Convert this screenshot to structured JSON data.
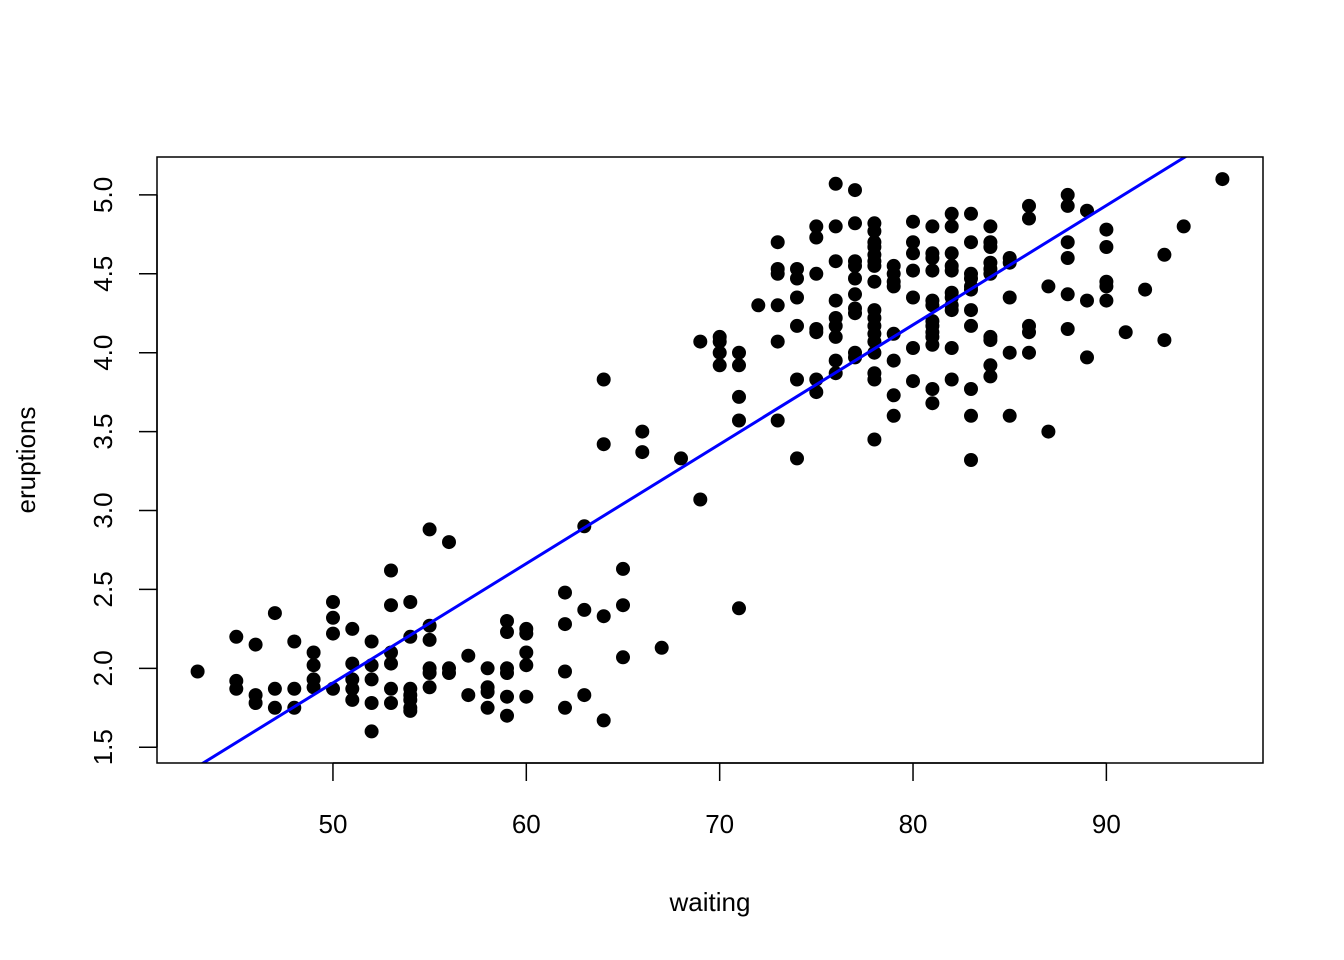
{
  "chart_data": {
    "type": "scatter",
    "title": "",
    "xlabel": "waiting",
    "ylabel": "eruptions",
    "xlim": [
      40.9,
      98.1
    ],
    "ylim": [
      1.4,
      5.24
    ],
    "xticks": [
      50,
      60,
      70,
      80,
      90
    ],
    "yticks": [
      1.5,
      2.0,
      2.5,
      3.0,
      3.5,
      4.0,
      4.5,
      5.0
    ],
    "xtick_labels": [
      "50",
      "60",
      "70",
      "80",
      "90"
    ],
    "ytick_labels": [
      "1.5",
      "2.0",
      "2.5",
      "3.0",
      "3.5",
      "4.0",
      "4.5",
      "5.0"
    ],
    "grid": false,
    "point_color": "#000000",
    "fit_line": {
      "intercept": -1.874,
      "slope": 0.07563,
      "color": "#0000ff"
    },
    "points": [
      [
        43,
        1.98
      ],
      [
        45,
        2.2
      ],
      [
        45,
        1.92
      ],
      [
        45,
        1.87
      ],
      [
        46,
        2.15
      ],
      [
        46,
        1.83
      ],
      [
        46,
        1.78
      ],
      [
        47,
        2.35
      ],
      [
        47,
        1.87
      ],
      [
        47,
        1.75
      ],
      [
        48,
        2.17
      ],
      [
        48,
        1.87
      ],
      [
        48,
        1.75
      ],
      [
        49,
        2.1
      ],
      [
        49,
        2.02
      ],
      [
        49,
        1.93
      ],
      [
        49,
        1.88
      ],
      [
        50,
        2.42
      ],
      [
        50,
        2.32
      ],
      [
        50,
        2.22
      ],
      [
        50,
        1.87
      ],
      [
        51,
        2.25
      ],
      [
        51,
        2.03
      ],
      [
        51,
        1.93
      ],
      [
        51,
        1.87
      ],
      [
        51,
        1.8
      ],
      [
        52,
        2.17
      ],
      [
        52,
        2.02
      ],
      [
        52,
        1.93
      ],
      [
        52,
        1.78
      ],
      [
        52,
        1.6
      ],
      [
        53,
        2.62
      ],
      [
        53,
        2.4
      ],
      [
        53,
        2.1
      ],
      [
        53,
        2.03
      ],
      [
        53,
        1.87
      ],
      [
        53,
        1.78
      ],
      [
        54,
        2.42
      ],
      [
        54,
        2.2
      ],
      [
        54,
        1.87
      ],
      [
        54,
        1.83
      ],
      [
        54,
        1.8
      ],
      [
        54,
        1.75
      ],
      [
        54,
        1.73
      ],
      [
        55,
        2.88
      ],
      [
        55,
        2.27
      ],
      [
        55,
        2.18
      ],
      [
        55,
        2.0
      ],
      [
        55,
        1.97
      ],
      [
        55,
        1.88
      ],
      [
        56,
        2.8
      ],
      [
        56,
        2.0
      ],
      [
        56,
        1.97
      ],
      [
        57,
        2.08
      ],
      [
        57,
        1.83
      ],
      [
        58,
        2.0
      ],
      [
        58,
        1.88
      ],
      [
        58,
        1.85
      ],
      [
        58,
        1.75
      ],
      [
        59,
        2.3
      ],
      [
        59,
        2.23
      ],
      [
        59,
        2.0
      ],
      [
        59,
        1.97
      ],
      [
        59,
        1.82
      ],
      [
        59,
        1.7
      ],
      [
        60,
        2.25
      ],
      [
        60,
        2.22
      ],
      [
        60,
        2.1
      ],
      [
        60,
        2.02
      ],
      [
        60,
        1.82
      ],
      [
        62,
        2.48
      ],
      [
        62,
        2.28
      ],
      [
        62,
        1.98
      ],
      [
        62,
        1.75
      ],
      [
        63,
        2.9
      ],
      [
        63,
        2.37
      ],
      [
        63,
        1.83
      ],
      [
        64,
        3.83
      ],
      [
        64,
        3.42
      ],
      [
        64,
        2.33
      ],
      [
        64,
        1.67
      ],
      [
        65,
        2.63
      ],
      [
        65,
        2.4
      ],
      [
        65,
        2.07
      ],
      [
        66,
        3.5
      ],
      [
        66,
        3.37
      ],
      [
        67,
        2.13
      ],
      [
        68,
        3.33
      ],
      [
        69,
        4.07
      ],
      [
        69,
        3.07
      ],
      [
        70,
        4.1
      ],
      [
        70,
        4.07
      ],
      [
        70,
        4.0
      ],
      [
        70,
        3.92
      ],
      [
        71,
        4.0
      ],
      [
        71,
        3.92
      ],
      [
        71,
        3.72
      ],
      [
        71,
        3.57
      ],
      [
        71,
        2.38
      ],
      [
        72,
        4.3
      ],
      [
        73,
        4.7
      ],
      [
        73,
        4.53
      ],
      [
        73,
        4.5
      ],
      [
        73,
        4.3
      ],
      [
        73,
        4.07
      ],
      [
        73,
        3.57
      ],
      [
        74,
        4.53
      ],
      [
        74,
        4.47
      ],
      [
        74,
        4.35
      ],
      [
        74,
        4.17
      ],
      [
        74,
        3.83
      ],
      [
        74,
        3.33
      ],
      [
        75,
        4.8
      ],
      [
        75,
        4.73
      ],
      [
        75,
        4.5
      ],
      [
        75,
        4.15
      ],
      [
        75,
        4.13
      ],
      [
        75,
        3.83
      ],
      [
        75,
        3.75
      ],
      [
        76,
        5.07
      ],
      [
        76,
        4.8
      ],
      [
        76,
        4.58
      ],
      [
        76,
        4.33
      ],
      [
        76,
        4.22
      ],
      [
        76,
        4.17
      ],
      [
        76,
        4.1
      ],
      [
        76,
        3.95
      ],
      [
        76,
        3.87
      ],
      [
        77,
        5.03
      ],
      [
        77,
        4.82
      ],
      [
        77,
        4.58
      ],
      [
        77,
        4.55
      ],
      [
        77,
        4.47
      ],
      [
        77,
        4.37
      ],
      [
        77,
        4.28
      ],
      [
        77,
        4.25
      ],
      [
        77,
        4.0
      ],
      [
        77,
        3.97
      ],
      [
        78,
        4.82
      ],
      [
        78,
        4.77
      ],
      [
        78,
        4.7
      ],
      [
        78,
        4.67
      ],
      [
        78,
        4.62
      ],
      [
        78,
        4.58
      ],
      [
        78,
        4.55
      ],
      [
        78,
        4.45
      ],
      [
        78,
        4.27
      ],
      [
        78,
        4.22
      ],
      [
        78,
        4.17
      ],
      [
        78,
        4.12
      ],
      [
        78,
        4.07
      ],
      [
        78,
        4.0
      ],
      [
        78,
        3.87
      ],
      [
        78,
        3.83
      ],
      [
        78,
        3.45
      ],
      [
        79,
        4.55
      ],
      [
        79,
        4.5
      ],
      [
        79,
        4.45
      ],
      [
        79,
        4.42
      ],
      [
        79,
        4.12
      ],
      [
        79,
        3.95
      ],
      [
        79,
        3.73
      ],
      [
        79,
        3.6
      ],
      [
        80,
        4.83
      ],
      [
        80,
        4.7
      ],
      [
        80,
        4.63
      ],
      [
        80,
        4.52
      ],
      [
        80,
        4.35
      ],
      [
        80,
        4.03
      ],
      [
        80,
        3.82
      ],
      [
        81,
        4.8
      ],
      [
        81,
        4.63
      ],
      [
        81,
        4.6
      ],
      [
        81,
        4.52
      ],
      [
        81,
        4.33
      ],
      [
        81,
        4.3
      ],
      [
        81,
        4.2
      ],
      [
        81,
        4.17
      ],
      [
        81,
        4.13
      ],
      [
        81,
        4.1
      ],
      [
        81,
        4.05
      ],
      [
        81,
        3.77
      ],
      [
        81,
        3.68
      ],
      [
        82,
        4.88
      ],
      [
        82,
        4.8
      ],
      [
        82,
        4.63
      ],
      [
        82,
        4.55
      ],
      [
        82,
        4.52
      ],
      [
        82,
        4.38
      ],
      [
        82,
        4.35
      ],
      [
        82,
        4.3
      ],
      [
        82,
        4.27
      ],
      [
        82,
        4.03
      ],
      [
        82,
        3.83
      ],
      [
        83,
        4.88
      ],
      [
        83,
        4.7
      ],
      [
        83,
        4.5
      ],
      [
        83,
        4.47
      ],
      [
        83,
        4.42
      ],
      [
        83,
        4.4
      ],
      [
        83,
        4.27
      ],
      [
        83,
        4.17
      ],
      [
        83,
        3.77
      ],
      [
        83,
        3.6
      ],
      [
        83,
        3.32
      ],
      [
        84,
        4.8
      ],
      [
        84,
        4.7
      ],
      [
        84,
        4.67
      ],
      [
        84,
        4.57
      ],
      [
        84,
        4.53
      ],
      [
        84,
        4.5
      ],
      [
        84,
        4.1
      ],
      [
        84,
        4.08
      ],
      [
        84,
        3.92
      ],
      [
        84,
        3.85
      ],
      [
        85,
        4.6
      ],
      [
        85,
        4.57
      ],
      [
        85,
        4.35
      ],
      [
        85,
        4.0
      ],
      [
        85,
        3.6
      ],
      [
        86,
        4.93
      ],
      [
        86,
        4.85
      ],
      [
        86,
        4.17
      ],
      [
        86,
        4.13
      ],
      [
        86,
        4.0
      ],
      [
        87,
        4.42
      ],
      [
        87,
        3.5
      ],
      [
        88,
        5.0
      ],
      [
        88,
        4.93
      ],
      [
        88,
        4.7
      ],
      [
        88,
        4.6
      ],
      [
        88,
        4.37
      ],
      [
        88,
        4.15
      ],
      [
        89,
        4.9
      ],
      [
        89,
        4.33
      ],
      [
        89,
        3.97
      ],
      [
        90,
        4.78
      ],
      [
        90,
        4.67
      ],
      [
        90,
        4.45
      ],
      [
        90,
        4.42
      ],
      [
        90,
        4.33
      ],
      [
        91,
        4.13
      ],
      [
        92,
        4.4
      ],
      [
        93,
        4.62
      ],
      [
        93,
        4.08
      ],
      [
        94,
        4.8
      ],
      [
        96,
        5.1
      ]
    ]
  }
}
